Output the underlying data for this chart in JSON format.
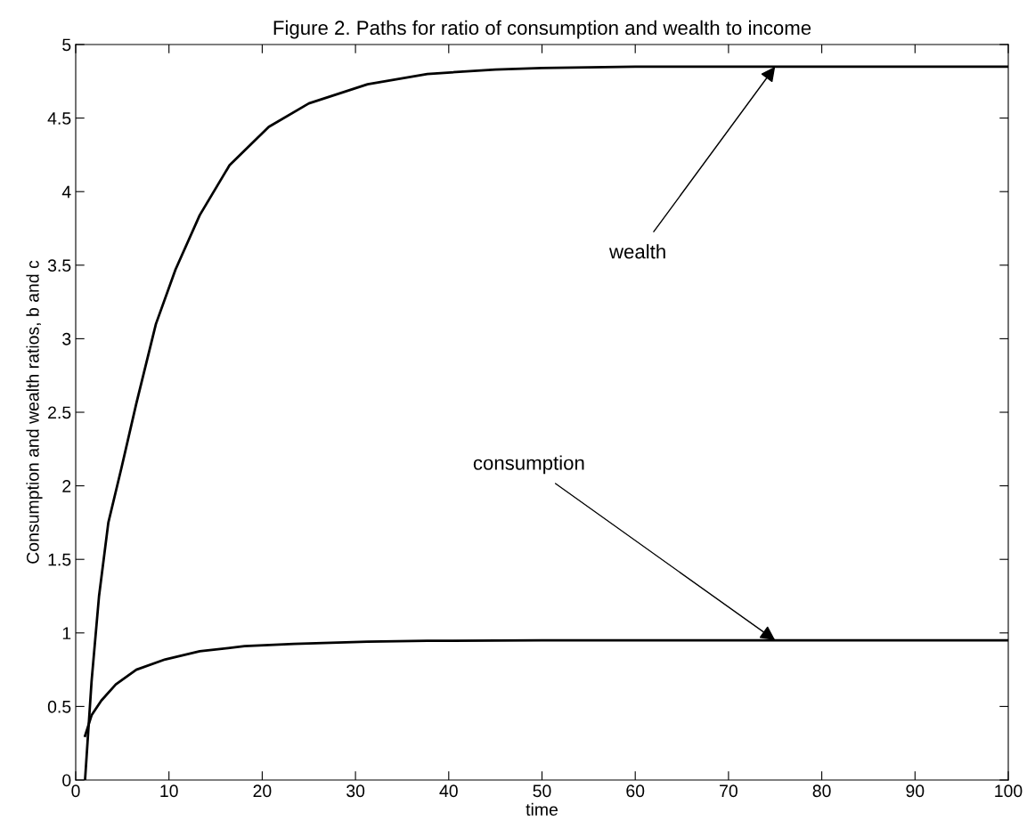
{
  "chart_data": {
    "type": "line",
    "title": "Figure 2. Paths for ratio of consumption and wealth to income",
    "xlabel": "time",
    "ylabel": "Consumption and wealth ratios, b and c",
    "series": [
      {
        "color": "#000000",
        "x": [
          1,
          1.7,
          2.5,
          3.5,
          4.9,
          6.5,
          8.6,
          10.7,
          13.3,
          16.5,
          20.7,
          25,
          31.3,
          37.7,
          45,
          50,
          60,
          70,
          80,
          90,
          100
        ],
        "values": [
          0,
          0.67,
          1.25,
          1.75,
          2.12,
          2.56,
          3.1,
          3.47,
          3.84,
          4.18,
          4.44,
          4.6,
          4.73,
          4.8,
          4.83,
          4.84,
          4.85,
          4.85,
          4.85,
          4.85,
          4.85
        ]
      },
      {
        "color": "#000000",
        "x": [
          1,
          1.7,
          2.75,
          4.3,
          6.5,
          9.6,
          13.3,
          18.1,
          23.4,
          31.3,
          37.7,
          50,
          60,
          70,
          80,
          90,
          100
        ],
        "values": [
          0.3,
          0.44,
          0.54,
          0.65,
          0.75,
          0.82,
          0.875,
          0.91,
          0.926,
          0.94,
          0.946,
          0.95,
          0.95,
          0.95,
          0.95,
          0.95,
          0.95
        ]
      }
    ],
    "annotations": [
      {
        "text": "wealth",
        "x": 75,
        "y": 4.85
      },
      {
        "text": "consumption",
        "x": 75,
        "y": 0.95
      }
    ],
    "xlim": [
      0,
      100
    ],
    "xticks": [
      0,
      10,
      20,
      30,
      40,
      50,
      60,
      70,
      80,
      90,
      100
    ],
    "ylim": [
      0,
      5
    ],
    "yticks": [
      0,
      0.5,
      1,
      1.5,
      2,
      2.5,
      3,
      3.5,
      4,
      4.5,
      5
    ],
    "grid": false,
    "legend": false
  }
}
